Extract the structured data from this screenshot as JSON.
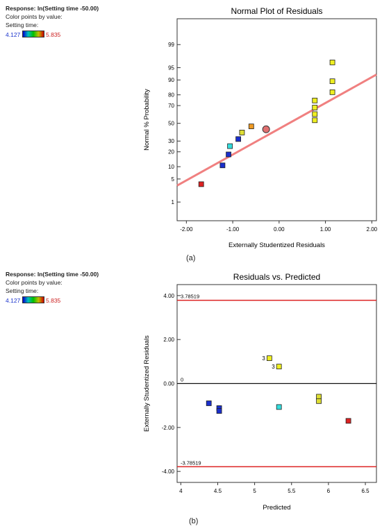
{
  "legend": {
    "response": "Response: ln(Setting time -50.00)",
    "color_by": "Color points by value:",
    "variable": "Setting time:",
    "min_label": "4.127",
    "max_label": "5.835",
    "gradient_colors": [
      "#0000cc",
      "#00c0c0",
      "#00c000",
      "#c0c000",
      "#cc0000"
    ]
  },
  "chart_data": [
    {
      "type": "scatter",
      "panel": "(a)",
      "title": "Normal Plot of Residuals",
      "xlabel": "Externally Studentized Residuals",
      "ylabel": "Normal % Probability",
      "xlim": [
        -2.2,
        2.1
      ],
      "ylim": [
        0.2,
        99.9
      ],
      "y_scale": "normal-probability",
      "x_ticks": [
        {
          "value": -2,
          "label": "-2.00"
        },
        {
          "value": -1,
          "label": "-1.00"
        },
        {
          "value": 0,
          "label": "0.00"
        },
        {
          "value": 1,
          "label": "1.00"
        },
        {
          "value": 2,
          "label": "2.00"
        }
      ],
      "y_ticks": [
        {
          "value": 1,
          "label": "1"
        },
        {
          "value": 5,
          "label": "5"
        },
        {
          "value": 10,
          "label": "10"
        },
        {
          "value": 20,
          "label": "20"
        },
        {
          "value": 30,
          "label": "30"
        },
        {
          "value": 50,
          "label": "50"
        },
        {
          "value": 70,
          "label": "70"
        },
        {
          "value": 80,
          "label": "80"
        },
        {
          "value": 90,
          "label": "90"
        },
        {
          "value": 95,
          "label": "95"
        },
        {
          "value": 99,
          "label": "99"
        }
      ],
      "reference_line": {
        "x": [
          -2.2,
          2.1
        ],
        "y": [
          3.3,
          92.5
        ],
        "color": "#f08080"
      },
      "center_marker": {
        "x": -0.28,
        "y": 43,
        "color": "#e07070"
      },
      "points": [
        {
          "x": -1.68,
          "y": 3.6,
          "color": "#dd2222"
        },
        {
          "x": -1.22,
          "y": 10.7,
          "color": "#1a2fcc"
        },
        {
          "x": -1.09,
          "y": 17.9,
          "color": "#1a2fcc"
        },
        {
          "x": -1.06,
          "y": 25,
          "color": "#33dddd"
        },
        {
          "x": -0.88,
          "y": 32.1,
          "color": "#1a2fcc"
        },
        {
          "x": -0.8,
          "y": 39.3,
          "color": "#dddd33"
        },
        {
          "x": -0.6,
          "y": 46.4,
          "color": "#ee9922"
        },
        {
          "x": 0.77,
          "y": 53.6,
          "color": "#eeee22"
        },
        {
          "x": 0.77,
          "y": 60.7,
          "color": "#eeee22"
        },
        {
          "x": 0.77,
          "y": 67.9,
          "color": "#eeee22"
        },
        {
          "x": 0.77,
          "y": 75,
          "color": "#eeee22"
        },
        {
          "x": 1.15,
          "y": 82.1,
          "color": "#eeee22"
        },
        {
          "x": 1.15,
          "y": 89.3,
          "color": "#eeee22"
        },
        {
          "x": 1.15,
          "y": 96.4,
          "color": "#eeee22"
        }
      ]
    },
    {
      "type": "scatter",
      "panel": "(b)",
      "title": "Residuals vs. Predicted",
      "xlabel": "Predicted",
      "ylabel": "Externally Studentized Residuals",
      "xlim": [
        3.95,
        6.65
      ],
      "ylim": [
        -4.5,
        4.5
      ],
      "x_ticks": [
        {
          "value": 4,
          "label": "4"
        },
        {
          "value": 4.5,
          "label": "4.5"
        },
        {
          "value": 5,
          "label": "5"
        },
        {
          "value": 5.5,
          "label": "5.5"
        },
        {
          "value": 6,
          "label": "6"
        },
        {
          "value": 6.5,
          "label": "6.5"
        }
      ],
      "y_ticks": [
        {
          "value": -4,
          "label": "-4.00"
        },
        {
          "value": -2,
          "label": "-2.00"
        },
        {
          "value": 0,
          "label": "0.00"
        },
        {
          "value": 2,
          "label": "2.00"
        },
        {
          "value": 4,
          "label": "4.00"
        }
      ],
      "hlines": [
        {
          "y": 3.78519,
          "label": "3.78519",
          "color": "#dd2222",
          "width": 1.5
        },
        {
          "y": 0,
          "label": "0",
          "color": "#111111",
          "width": 1.2
        },
        {
          "y": -3.78519,
          "label": "-3.78519",
          "color": "#dd2222",
          "width": 1.5
        }
      ],
      "points": [
        {
          "x": 4.38,
          "y": -0.9,
          "color": "#1a2fcc"
        },
        {
          "x": 4.52,
          "y": -1.12,
          "color": "#1a2fcc"
        },
        {
          "x": 4.52,
          "y": -1.25,
          "color": "#1a2fcc"
        },
        {
          "x": 5.2,
          "y": 1.15,
          "color": "#eeee22",
          "label": "3"
        },
        {
          "x": 5.33,
          "y": 0.77,
          "color": "#eeee22",
          "label": "3"
        },
        {
          "x": 5.33,
          "y": -1.07,
          "color": "#33dddd"
        },
        {
          "x": 5.87,
          "y": -0.6,
          "color": "#dddd33"
        },
        {
          "x": 5.87,
          "y": -0.8,
          "color": "#dddd33"
        },
        {
          "x": 6.27,
          "y": -1.7,
          "color": "#dd2222"
        }
      ]
    }
  ]
}
